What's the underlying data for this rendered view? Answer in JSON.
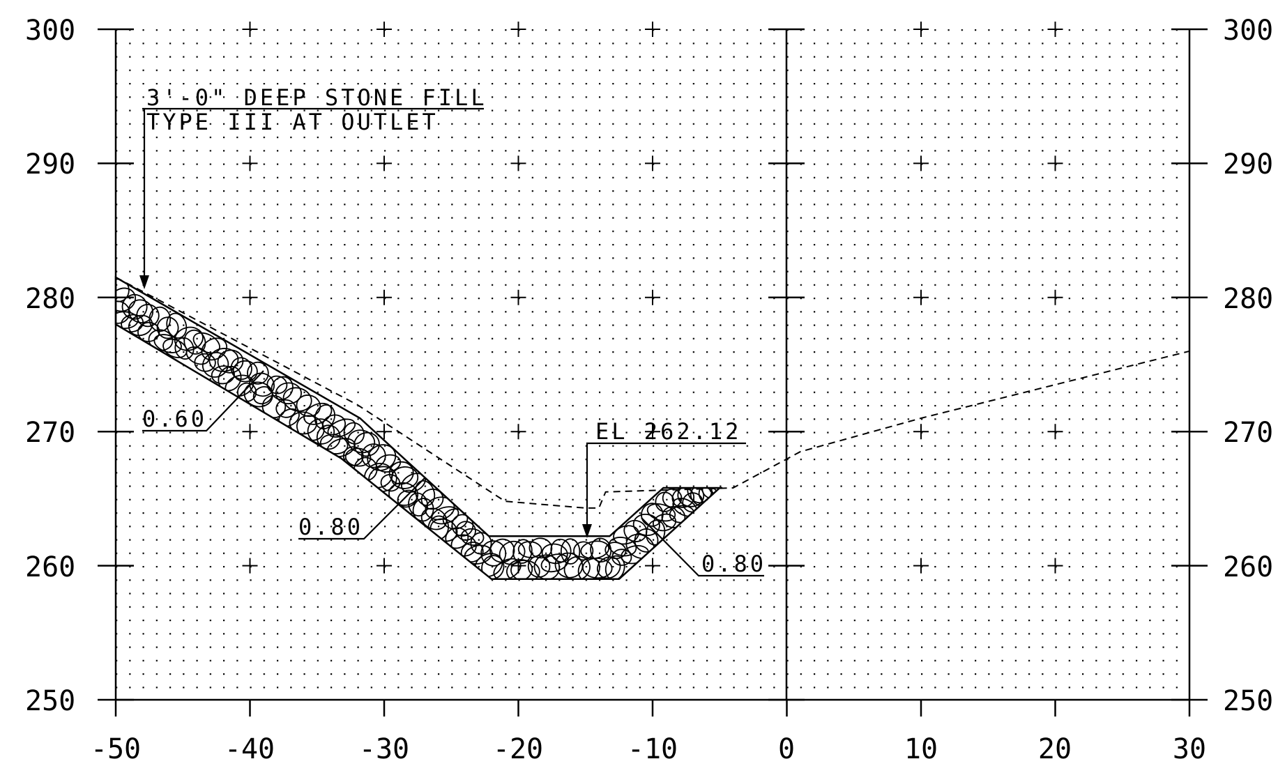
{
  "axes": {
    "x_ticks": [
      "-50",
      "-40",
      "-30",
      "-20",
      "-10",
      "0",
      "10",
      "20",
      "30"
    ],
    "y_ticks": [
      "300",
      "290",
      "280",
      "270",
      "260",
      "250"
    ]
  },
  "annotations": {
    "stone_fill_line1": "3'-0\" DEEP STONE FILL",
    "stone_fill_line2": "TYPE III AT OUTLET",
    "slope_left": "0.60",
    "slope_mid": "0.80",
    "slope_right": "0.80",
    "elevation": "EL 262.12"
  },
  "geometry_data": {
    "x_range": [
      -50,
      30
    ],
    "y_range": [
      250,
      300
    ],
    "stone_top": [
      [
        -50,
        281.5
      ],
      [
        -31.8,
        271
      ],
      [
        -22.2,
        262.2
      ],
      [
        -13.2,
        262.2
      ],
      [
        -9.2,
        265.8
      ],
      [
        -4.8,
        265.8
      ]
    ],
    "stone_bottom": [
      [
        -50,
        278
      ],
      [
        -33.2,
        268
      ],
      [
        -22,
        259
      ],
      [
        -12.5,
        259
      ],
      [
        -5,
        265.8
      ]
    ],
    "ground_dashed": [
      [
        -50,
        281.5
      ],
      [
        -32,
        272
      ],
      [
        -21,
        264.8
      ],
      [
        -15,
        264.3
      ],
      [
        -14,
        264.3
      ],
      [
        -13.5,
        265.5
      ],
      [
        -4,
        265.8
      ],
      [
        1,
        268.5
      ],
      [
        10,
        271
      ],
      [
        20,
        273.5
      ],
      [
        30,
        276
      ]
    ]
  },
  "colors": {
    "ink": "#000000",
    "background": "#ffffff"
  }
}
